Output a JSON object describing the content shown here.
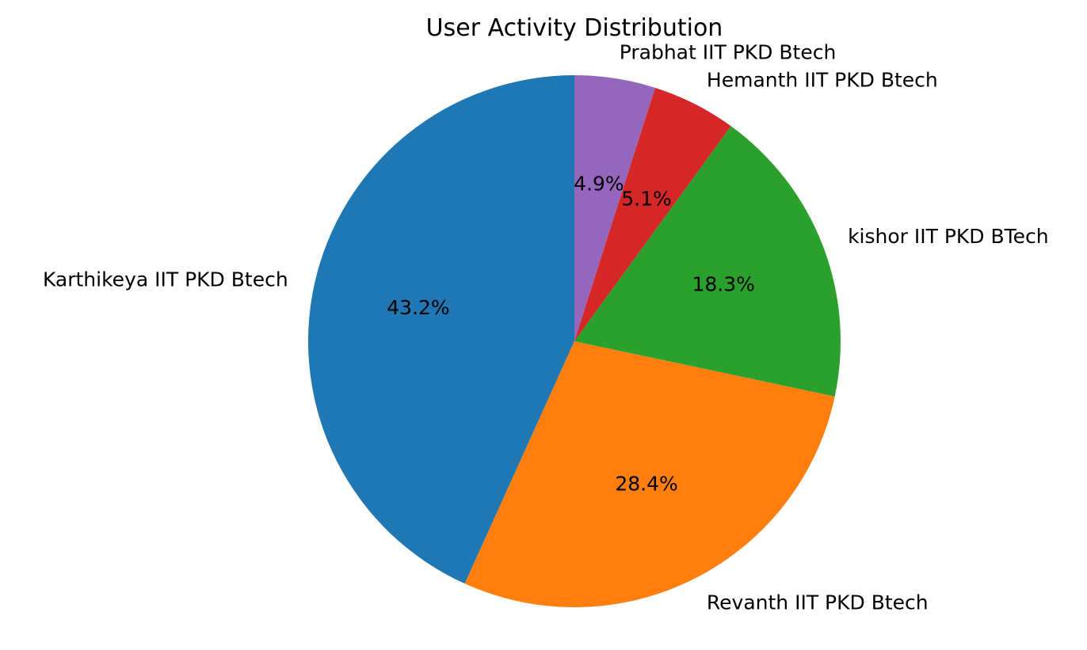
{
  "chart_data": {
    "type": "pie",
    "title": "User Activity Distribution",
    "start_angle_deg": 90,
    "direction": "counterclockwise",
    "slices": [
      {
        "label": "Karthikeya IIT PKD Btech",
        "value": 43.2,
        "pct_label": "43.2%",
        "color": "#1f77b4"
      },
      {
        "label": "Revanth IIT PKD Btech",
        "value": 28.4,
        "pct_label": "28.4%",
        "color": "#ff7f0e"
      },
      {
        "label": "kishor IIT PKD BTech",
        "value": 18.3,
        "pct_label": "18.3%",
        "color": "#2ca02c"
      },
      {
        "label": "Hemanth IIT PKD Btech",
        "value": 5.1,
        "pct_label": "5.1%",
        "color": "#d62728"
      },
      {
        "label": "Prabhat IIT PKD Btech",
        "value": 4.9,
        "pct_label": "4.9%",
        "color": "#9467bd"
      }
    ]
  }
}
